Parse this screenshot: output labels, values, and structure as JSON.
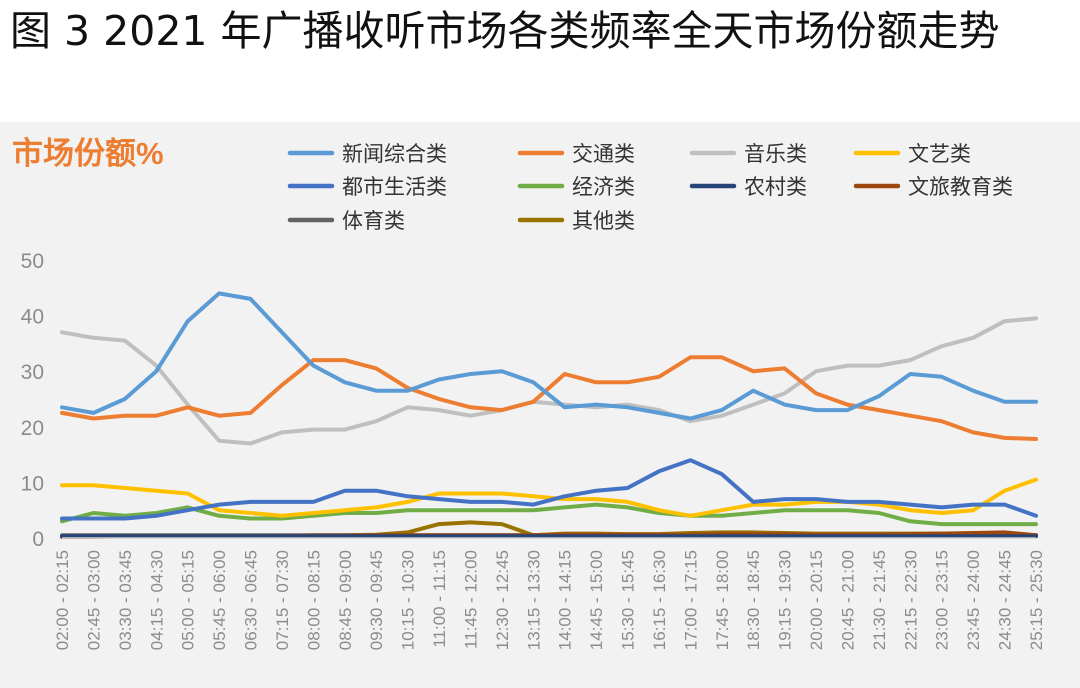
{
  "figure_title": "图 3 2021 年广播收听市场各类频率全天市场份额走势",
  "chart_data": {
    "type": "line",
    "title": "",
    "ylabel": "市场份额%",
    "xlabel": "",
    "ylim": [
      0,
      50
    ],
    "yticks": [
      0,
      10,
      20,
      30,
      40,
      50
    ],
    "grid": false,
    "legend_position": "top",
    "x": [
      "02:00 - 02:15",
      "02:45 - 03:00",
      "03:30 - 03:45",
      "04:15 - 04:30",
      "05:00 - 05:15",
      "05:45 - 06:00",
      "06:30 - 06:45",
      "07:15 - 07:30",
      "08:00 - 08:15",
      "08:45 - 09:00",
      "09:30 - 09:45",
      "10:15 - 10:30",
      "11:00 - 11:15",
      "11:45 - 12:00",
      "12:30 - 12:45",
      "13:15 - 13:30",
      "14:00 - 14:15",
      "14:45 - 15:00",
      "15:30 - 15:45",
      "16:15 - 16:30",
      "17:00 - 17:15",
      "17:45 - 18:00",
      "18:30 - 18:45",
      "19:15 - 19:30",
      "20:00 - 20:15",
      "20:45 - 21:00",
      "21:30 - 21:45",
      "22:15 - 22:30",
      "23:00 - 23:15",
      "23:45 - 24:00",
      "24:30 - 24:45",
      "25:15 - 25:30"
    ],
    "series": [
      {
        "name": "新闻综合类",
        "color": "#5b9bd5",
        "values": [
          23.5,
          22.5,
          25,
          30,
          39,
          44,
          43,
          37,
          31,
          28,
          26.5,
          26.5,
          28.5,
          29.5,
          30,
          28,
          23.5,
          24,
          23.5,
          22.5,
          21.5,
          23,
          26.5,
          24,
          23,
          23,
          25.5,
          29.5,
          29,
          26.5,
          24.5,
          24.5
        ]
      },
      {
        "name": "交通类",
        "color": "#ed7d31",
        "values": [
          22.5,
          21.5,
          22,
          22,
          23.5,
          22,
          22.5,
          27.5,
          32,
          32,
          30.5,
          27,
          25,
          23.5,
          23,
          24.5,
          29.5,
          28,
          28,
          29,
          32.5,
          32.5,
          30,
          30.5,
          26,
          24,
          23,
          22,
          21,
          19,
          18,
          17.8
        ]
      },
      {
        "name": "音乐类",
        "color": "#bfbfbf",
        "values": [
          37,
          36,
          35.5,
          31,
          24,
          17.5,
          17,
          19,
          19.5,
          19.5,
          21,
          23.5,
          23,
          22,
          23,
          24.5,
          24,
          23.5,
          24,
          23,
          21,
          22,
          24,
          26,
          30,
          31,
          31,
          32,
          34.5,
          36,
          39,
          39.5
        ]
      },
      {
        "name": "文艺类",
        "color": "#ffc000",
        "values": [
          9.5,
          9.5,
          9,
          8.5,
          8,
          5,
          4.5,
          4,
          4.5,
          5,
          5.5,
          6.5,
          8,
          8,
          8,
          7.5,
          7,
          7,
          6.5,
          5,
          4,
          5,
          6,
          6,
          6.5,
          6.5,
          6,
          5,
          4.5,
          5,
          8.5,
          10.5
        ]
      },
      {
        "name": "都市生活类",
        "color": "#4472c4",
        "values": [
          3.5,
          3.5,
          3.5,
          4,
          5,
          6,
          6.5,
          6.5,
          6.5,
          8.5,
          8.5,
          7.5,
          7,
          6.5,
          6.5,
          6,
          7.5,
          8.5,
          9,
          12,
          14,
          11.5,
          6.5,
          7,
          7,
          6.5,
          6.5,
          6,
          5.5,
          6,
          6,
          4
        ]
      },
      {
        "name": "经济类",
        "color": "#70ad47",
        "values": [
          3,
          4.5,
          4,
          4.5,
          5.5,
          4,
          3.5,
          3.5,
          4,
          4.5,
          4.5,
          5,
          5,
          5,
          5,
          5,
          5.5,
          6,
          5.5,
          4.5,
          4,
          4,
          4.5,
          5,
          5,
          5,
          4.5,
          3,
          2.5,
          2.5,
          2.5,
          2.5
        ]
      },
      {
        "name": "农村类",
        "color": "#264478",
        "values": [
          0.3,
          0.3,
          0.3,
          0.3,
          0.3,
          0.3,
          0.3,
          0.3,
          0.3,
          0.3,
          0.3,
          0.3,
          0.3,
          0.3,
          0.3,
          0.3,
          0.3,
          0.3,
          0.3,
          0.3,
          0.3,
          0.3,
          0.3,
          0.3,
          0.3,
          0.3,
          0.3,
          0.3,
          0.3,
          0.3,
          0.3,
          0.3
        ]
      },
      {
        "name": "文旅教育类",
        "color": "#9e480e",
        "values": [
          0.2,
          0.2,
          0.3,
          0.3,
          0.3,
          0.3,
          0.3,
          0.3,
          0.4,
          0.4,
          0.5,
          0.5,
          0.5,
          0.5,
          0.5,
          0.5,
          0.6,
          0.6,
          0.6,
          0.6,
          0.6,
          0.7,
          0.7,
          0.7,
          0.6,
          0.6,
          0.6,
          0.7,
          0.8,
          0.9,
          1.0,
          0.5
        ]
      },
      {
        "name": "体育类",
        "color": "#636363",
        "values": [
          0.5,
          0.5,
          0.5,
          0.5,
          0.5,
          0.5,
          0.5,
          0.5,
          0.5,
          0.5,
          0.5,
          0.5,
          0.5,
          0.5,
          0.5,
          0.5,
          0.5,
          0.5,
          0.5,
          0.5,
          0.5,
          0.5,
          0.5,
          0.5,
          0.5,
          0.5,
          0.5,
          0.5,
          0.5,
          0.5,
          0.5,
          0.5
        ]
      },
      {
        "name": "其他类",
        "color": "#997300",
        "values": [
          0.3,
          0.3,
          0.3,
          0.3,
          0.3,
          0.3,
          0.3,
          0.3,
          0.5,
          0.5,
          0.6,
          1.0,
          2.5,
          2.8,
          2.5,
          0.5,
          0.8,
          0.8,
          0.7,
          0.7,
          0.9,
          1.0,
          1.0,
          0.9,
          0.8,
          0.8,
          0.8,
          0.8,
          0.8,
          0.6,
          0.5,
          0.5
        ]
      }
    ]
  }
}
